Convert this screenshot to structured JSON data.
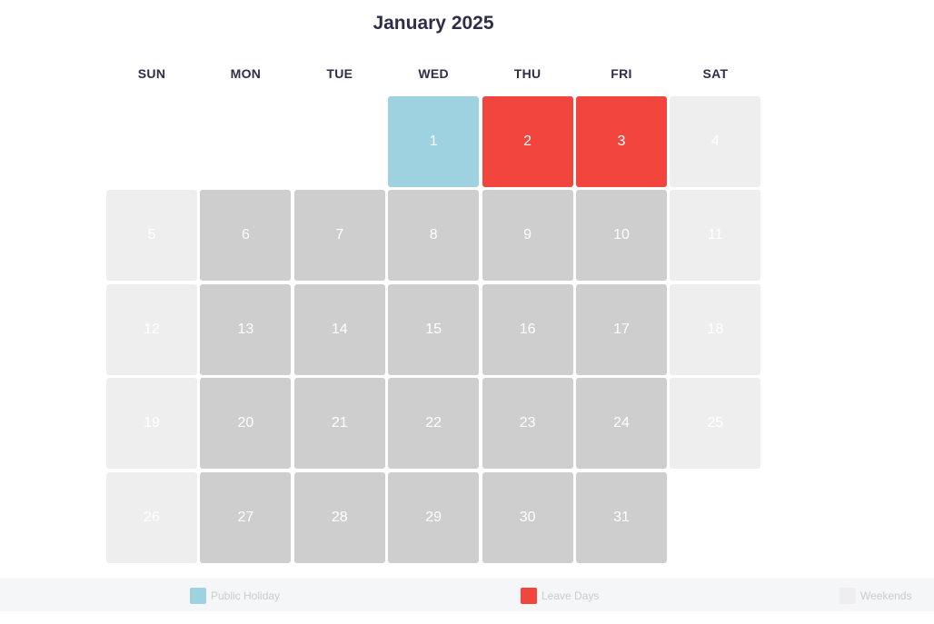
{
  "calendar": {
    "title": "January 2025",
    "weekdays": [
      "SUN",
      "MON",
      "TUE",
      "WED",
      "THU",
      "FRI",
      "SAT"
    ],
    "days": [
      {
        "label": "1",
        "type": "holiday"
      },
      {
        "label": "2",
        "type": "leave"
      },
      {
        "label": "3",
        "type": "leave"
      },
      {
        "label": "4",
        "type": "weekend"
      },
      {
        "label": "5",
        "type": "weekend"
      },
      {
        "label": "6",
        "type": "workday"
      },
      {
        "label": "7",
        "type": "workday"
      },
      {
        "label": "8",
        "type": "workday"
      },
      {
        "label": "9",
        "type": "workday"
      },
      {
        "label": "10",
        "type": "workday"
      },
      {
        "label": "11",
        "type": "weekend"
      },
      {
        "label": "12",
        "type": "weekend"
      },
      {
        "label": "13",
        "type": "workday"
      },
      {
        "label": "14",
        "type": "workday"
      },
      {
        "label": "15",
        "type": "workday"
      },
      {
        "label": "16",
        "type": "workday"
      },
      {
        "label": "17",
        "type": "workday"
      },
      {
        "label": "18",
        "type": "weekend"
      },
      {
        "label": "19",
        "type": "weekend"
      },
      {
        "label": "20",
        "type": "workday"
      },
      {
        "label": "21",
        "type": "workday"
      },
      {
        "label": "22",
        "type": "workday"
      },
      {
        "label": "23",
        "type": "workday"
      },
      {
        "label": "24",
        "type": "workday"
      },
      {
        "label": "25",
        "type": "weekend"
      },
      {
        "label": "26",
        "type": "weekend"
      },
      {
        "label": "27",
        "type": "workday"
      },
      {
        "label": "28",
        "type": "workday"
      },
      {
        "label": "29",
        "type": "workday"
      },
      {
        "label": "30",
        "type": "workday"
      },
      {
        "label": "31",
        "type": "workday"
      }
    ]
  },
  "legend": {
    "items": [
      {
        "label": "Public Holiday",
        "color": "#9fd2e1"
      },
      {
        "label": "Leave Days",
        "color": "#f1453d"
      },
      {
        "label": "Weekends",
        "color": "#eeeeee"
      }
    ]
  },
  "colors": {
    "holiday": "#9fd2e1",
    "leave": "#f1453d",
    "weekend": "#eeeeee",
    "workday": "#cecece",
    "title": "#2f2d48"
  }
}
